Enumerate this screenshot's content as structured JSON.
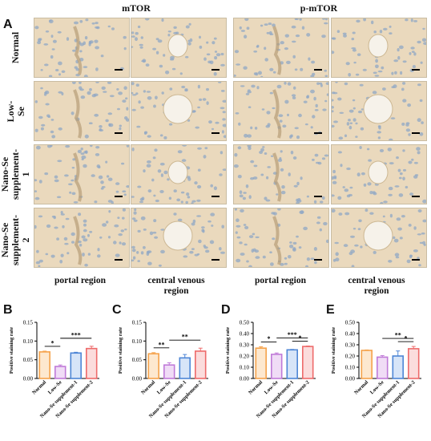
{
  "panel_letters": [
    "A",
    "B",
    "C",
    "D",
    "E"
  ],
  "headers": {
    "mtor": "mTOR",
    "pmtor": "p-mTOR"
  },
  "row_labels": [
    "Normal",
    "Low-Se",
    "Nano-Se\nsupplement-1",
    "Nano-Se\nsupplement-2"
  ],
  "column_labels": [
    "portal region",
    "central venous\nregion",
    "portal region",
    "central venous\nregion"
  ],
  "colors": {
    "tissue": "#ead9bd",
    "cell": "#8fa7c6",
    "lumen": "#f6f2ea"
  },
  "chart_data": [
    {
      "type": "bar",
      "panel": "B",
      "categories": [
        "Normal",
        "Low-Se",
        "Nano-Se supplement-1",
        "Nano-Se supplement-2"
      ],
      "values": [
        0.071,
        0.032,
        0.068,
        0.08
      ],
      "errors": [
        0.002,
        0.004,
        0.002,
        0.006
      ],
      "ylabel": "Positive staining rate",
      "ylim": [
        0,
        0.15
      ],
      "yticks": [
        "0.00",
        "0.05",
        "0.10",
        "0.15"
      ],
      "colors": [
        "#f5a24b",
        "#c07ad8",
        "#4e86d6",
        "#ee6b6b"
      ],
      "fills": [
        "#fde8cf",
        "#f0dcf6",
        "#d7e5f8",
        "#fbdcdc"
      ],
      "sig": [
        {
          "from": 0,
          "to": 1,
          "label": "*"
        },
        {
          "from": 1,
          "to": 3,
          "label": "***"
        }
      ]
    },
    {
      "type": "bar",
      "panel": "C",
      "categories": [
        "Normal",
        "Low-Se",
        "Nano-Se supplement-1",
        "Nano-Se supplement-2"
      ],
      "values": [
        0.066,
        0.036,
        0.055,
        0.073
      ],
      "errors": [
        0.003,
        0.006,
        0.009,
        0.008
      ],
      "ylabel": "Positive staining rate",
      "ylim": [
        0,
        0.15
      ],
      "yticks": [
        "0.00",
        "0.05",
        "0.10",
        "0.15"
      ],
      "colors": [
        "#f5a24b",
        "#c07ad8",
        "#4e86d6",
        "#ee6b6b"
      ],
      "fills": [
        "#fde8cf",
        "#f0dcf6",
        "#d7e5f8",
        "#fbdcdc"
      ],
      "sig": [
        {
          "from": 0,
          "to": 1,
          "label": "**"
        },
        {
          "from": 1,
          "to": 3,
          "label": "**"
        }
      ]
    },
    {
      "type": "bar",
      "panel": "D",
      "categories": [
        "Normal",
        "Low-Se",
        "Nano-Se supplement-1",
        "Nano-Se supplement-2"
      ],
      "values": [
        0.27,
        0.215,
        0.255,
        0.285
      ],
      "errors": [
        0.012,
        0.012,
        0.004,
        0.004
      ],
      "ylabel": "Positive staining rate",
      "ylim": [
        0,
        0.5
      ],
      "yticks": [
        "0.00",
        "0.10",
        "0.20",
        "0.30",
        "0.40",
        "0.50"
      ],
      "colors": [
        "#f5a24b",
        "#c07ad8",
        "#4e86d6",
        "#ee6b6b"
      ],
      "fills": [
        "#fde8cf",
        "#f0dcf6",
        "#d7e5f8",
        "#fbdcdc"
      ],
      "sig": [
        {
          "from": 0,
          "to": 1,
          "label": "*"
        },
        {
          "from": 1,
          "to": 3,
          "label": "***"
        },
        {
          "from": 2,
          "to": 3,
          "label": "*"
        }
      ]
    },
    {
      "type": "bar",
      "panel": "E",
      "categories": [
        "Normal",
        "Low-Se",
        "Nano-Se supplement-1",
        "Nano-Se supplement-2"
      ],
      "values": [
        0.25,
        0.19,
        0.2,
        0.265
      ],
      "errors": [
        0.004,
        0.014,
        0.045,
        0.02
      ],
      "ylabel": "Positive staining rate",
      "ylim": [
        0,
        0.5
      ],
      "yticks": [
        "0.00",
        "0.10",
        "0.20",
        "0.30",
        "0.40",
        "0.50"
      ],
      "colors": [
        "#f5a24b",
        "#c07ad8",
        "#4e86d6",
        "#ee6b6b"
      ],
      "fills": [
        "#fde8cf",
        "#f0dcf6",
        "#d7e5f8",
        "#fbdcdc"
      ],
      "sig": [
        {
          "from": 1,
          "to": 3,
          "label": "**"
        },
        {
          "from": 2,
          "to": 3,
          "label": "*"
        }
      ]
    }
  ]
}
